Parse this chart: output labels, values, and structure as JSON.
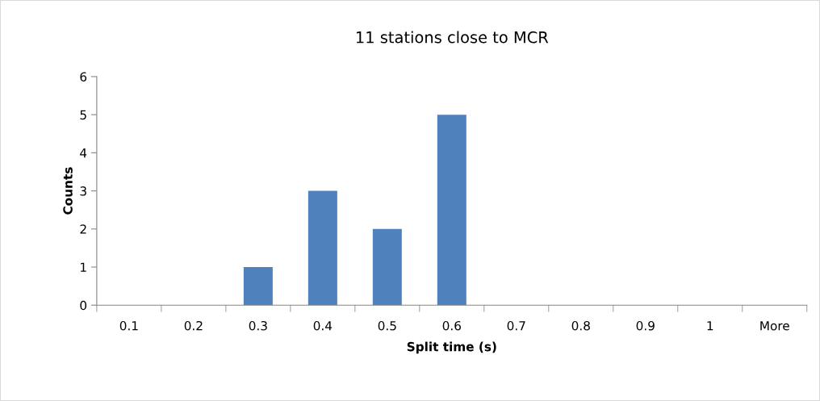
{
  "chart_data": {
    "type": "bar",
    "title": "11 stations close to MCR",
    "xlabel": "Split time (s)",
    "ylabel": "Counts",
    "categories": [
      "0.1",
      "0.2",
      "0.3",
      "0.4",
      "0.5",
      "0.6",
      "0.7",
      "0.8",
      "0.9",
      "1",
      "More"
    ],
    "values": [
      0,
      0,
      1,
      3,
      2,
      5,
      0,
      0,
      0,
      0,
      0
    ],
    "color": "#4f81bd",
    "ylim": [
      0,
      6
    ],
    "yticks": [
      0,
      1,
      2,
      3,
      4,
      5,
      6
    ],
    "grid": false,
    "legend": false
  }
}
